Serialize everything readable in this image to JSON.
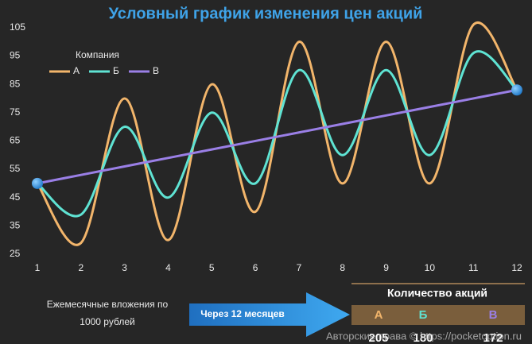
{
  "chart_data": {
    "type": "line",
    "title": "Условный график изменения цен акций",
    "x": [
      1,
      2,
      3,
      4,
      5,
      6,
      7,
      8,
      9,
      10,
      11,
      12
    ],
    "xlim": [
      1,
      12
    ],
    "xticks": [
      1,
      2,
      3,
      4,
      5,
      6,
      7,
      8,
      9,
      10,
      11,
      12
    ],
    "ylim": [
      25,
      110
    ],
    "yticks": [
      25,
      35,
      45,
      55,
      65,
      75,
      85,
      95,
      105
    ],
    "grid": false,
    "legend_title": "Компания",
    "legend_position": "upper left",
    "series": [
      {
        "name": "А",
        "color": "#f2b56b",
        "values": [
          50,
          29,
          80,
          30,
          85,
          40,
          100,
          50,
          100,
          50,
          106,
          83
        ]
      },
      {
        "name": "Б",
        "color": "#5fe3d3",
        "values": [
          50,
          39,
          70,
          45,
          75,
          50,
          90,
          60,
          90,
          60,
          96,
          83
        ]
      },
      {
        "name": "В",
        "color": "#9a7fe6",
        "values": [
          50,
          53,
          56,
          59,
          62,
          65,
          68,
          71,
          74,
          77,
          80,
          83
        ]
      }
    ]
  },
  "investment_note": [
    "Ежемесячные вложения по",
    "1000 рублей"
  ],
  "arrow_label": "Через 12 месяцев",
  "shares_table": {
    "title": "Количество акций",
    "headers": [
      "А",
      "Б",
      "В"
    ],
    "values": [
      205,
      180,
      172
    ]
  },
  "copyright": "Авторские права © https://pocketoption.ru"
}
